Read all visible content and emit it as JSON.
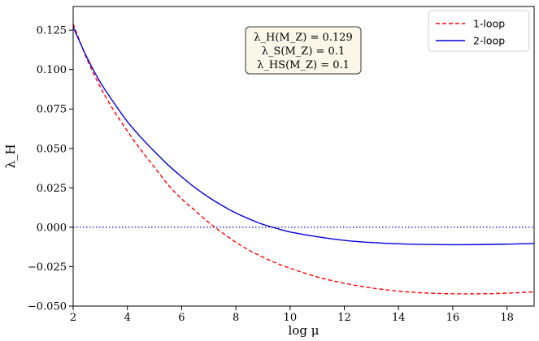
{
  "chart_data": {
    "type": "line",
    "xlabel": "log μ",
    "ylabel": "λ_H",
    "xlim": [
      2,
      19
    ],
    "ylim": [
      -0.05,
      0.14
    ],
    "x_ticks": [
      2,
      4,
      6,
      8,
      10,
      12,
      14,
      16,
      18
    ],
    "y_ticks": [
      -0.05,
      -0.025,
      0.0,
      0.025,
      0.05,
      0.075,
      0.1,
      0.125
    ],
    "x_tick_labels": [
      "2",
      "4",
      "6",
      "8",
      "10",
      "12",
      "14",
      "16",
      "18"
    ],
    "y_tick_labels": [
      "−0.050",
      "−0.025",
      "0.000",
      "0.025",
      "0.050",
      "0.075",
      "0.100",
      "0.125"
    ],
    "grid": false,
    "legend_position": "top-right",
    "reference_lines": [
      {
        "y": 0.0,
        "style": "dotted",
        "color": "#0000cc"
      }
    ],
    "annotation": {
      "position": "top-center",
      "lines": [
        "λ_H(M_Z) = 0.129",
        "λ_S(M_Z) = 0.1",
        "λ_HS(M_Z) = 0.1"
      ]
    },
    "series": [
      {
        "name": "1-loop",
        "color": "#ff0000",
        "style": "dashed",
        "x": [
          2,
          2.5,
          3,
          3.5,
          4,
          4.5,
          5,
          5.5,
          6,
          6.5,
          7,
          7.5,
          8,
          8.5,
          9,
          9.5,
          10,
          11,
          12,
          13,
          14,
          15,
          16,
          17,
          18,
          19
        ],
        "y": [
          0.129,
          0.107,
          0.089,
          0.074,
          0.061,
          0.049,
          0.038,
          0.027,
          0.018,
          0.0105,
          0.003,
          -0.0035,
          -0.0095,
          -0.0147,
          -0.019,
          -0.0228,
          -0.026,
          -0.0315,
          -0.0355,
          -0.0385,
          -0.0405,
          -0.0417,
          -0.0422,
          -0.0422,
          -0.0418,
          -0.041
        ]
      },
      {
        "name": "2-loop",
        "color": "#0000dd",
        "style": "solid",
        "x": [
          2,
          2.5,
          3,
          3.5,
          4,
          4.5,
          5,
          5.5,
          6,
          6.5,
          7,
          7.5,
          8,
          8.5,
          9,
          9.5,
          10,
          11,
          12,
          13,
          14,
          15,
          16,
          17,
          18,
          19
        ],
        "y": [
          0.127,
          0.108,
          0.092,
          0.079,
          0.067,
          0.057,
          0.048,
          0.0395,
          0.032,
          0.025,
          0.019,
          0.0137,
          0.009,
          0.0052,
          0.0018,
          -0.0007,
          -0.003,
          -0.006,
          -0.0083,
          -0.0097,
          -0.0105,
          -0.0109,
          -0.0111,
          -0.011,
          -0.0107,
          -0.0103
        ]
      }
    ]
  }
}
